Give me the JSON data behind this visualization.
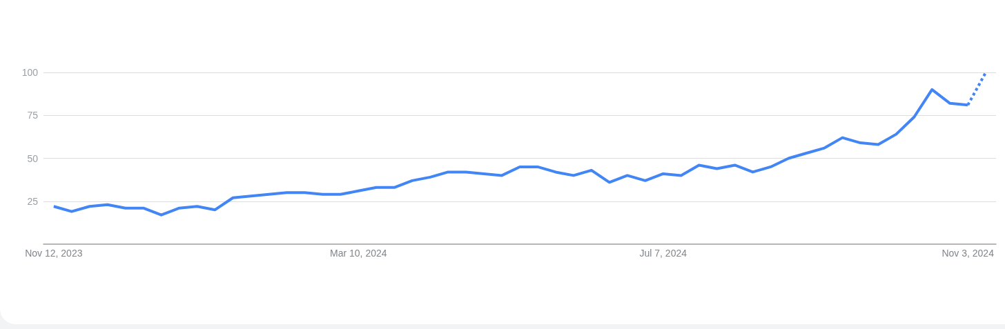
{
  "chart_data": {
    "type": "line",
    "x": [
      "2023-11-12",
      "2023-11-19",
      "2023-11-26",
      "2023-12-03",
      "2023-12-10",
      "2023-12-17",
      "2023-12-24",
      "2023-12-31",
      "2024-01-07",
      "2024-01-14",
      "2024-01-21",
      "2024-01-28",
      "2024-02-04",
      "2024-02-11",
      "2024-02-18",
      "2024-02-25",
      "2024-03-03",
      "2024-03-10",
      "2024-03-17",
      "2024-03-24",
      "2024-03-31",
      "2024-04-07",
      "2024-04-14",
      "2024-04-21",
      "2024-04-28",
      "2024-05-05",
      "2024-05-12",
      "2024-05-19",
      "2024-05-26",
      "2024-06-02",
      "2024-06-09",
      "2024-06-16",
      "2024-06-23",
      "2024-06-30",
      "2024-07-07",
      "2024-07-14",
      "2024-07-21",
      "2024-07-28",
      "2024-08-04",
      "2024-08-11",
      "2024-08-18",
      "2024-08-25",
      "2024-09-01",
      "2024-09-08",
      "2024-09-15",
      "2024-09-22",
      "2024-09-29",
      "2024-10-06",
      "2024-10-13",
      "2024-10-20",
      "2024-10-27",
      "2024-11-03",
      "2024-11-10"
    ],
    "series": [
      {
        "color": "#4285f4",
        "line_style": "solid",
        "values": [
          22,
          19,
          22,
          23,
          21,
          21,
          17,
          21,
          22,
          20,
          27,
          28,
          29,
          30,
          30,
          29,
          29,
          31,
          33,
          33,
          37,
          39,
          42,
          42,
          41,
          40,
          45,
          45,
          42,
          40,
          43,
          36,
          40,
          37,
          41,
          40,
          46,
          44,
          46,
          42,
          45,
          50,
          53,
          56,
          62,
          59,
          58,
          64,
          74,
          90,
          82,
          81,
          null
        ]
      },
      {
        "color": "#4285f4",
        "line_style": "dotted",
        "values": [
          null,
          null,
          null,
          null,
          null,
          null,
          null,
          null,
          null,
          null,
          null,
          null,
          null,
          null,
          null,
          null,
          null,
          null,
          null,
          null,
          null,
          null,
          null,
          null,
          null,
          null,
          null,
          null,
          null,
          null,
          null,
          null,
          null,
          null,
          null,
          null,
          null,
          null,
          null,
          null,
          null,
          null,
          null,
          null,
          null,
          null,
          null,
          null,
          null,
          null,
          null,
          81,
          100
        ]
      }
    ],
    "xlim": [
      "2023-11-08",
      "2024-11-14"
    ],
    "xticks": [
      {
        "value": "2023-11-12",
        "label": "Nov 12, 2023"
      },
      {
        "value": "2024-03-10",
        "label": "Mar 10, 2024"
      },
      {
        "value": "2024-07-07",
        "label": "Jul 7, 2024"
      },
      {
        "value": "2024-11-03",
        "label": "Nov 3, 2024"
      }
    ],
    "ylim": [
      0,
      100
    ],
    "yticks": [
      25,
      50,
      75,
      100
    ],
    "grid": "y",
    "marker": "none"
  }
}
